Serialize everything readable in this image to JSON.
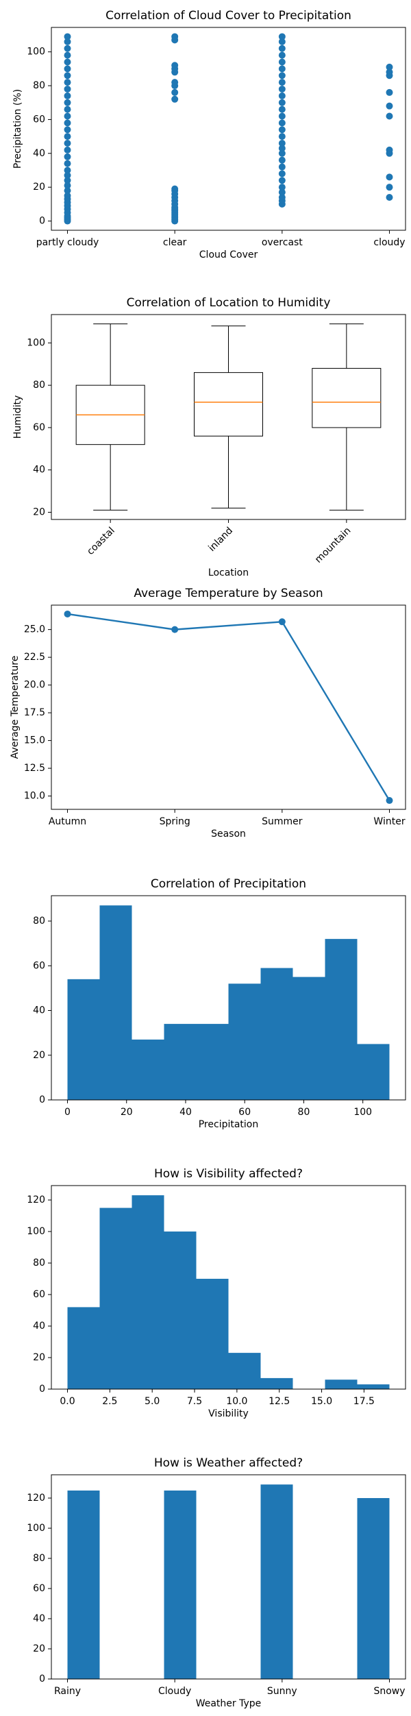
{
  "chart_data": [
    {
      "type": "scatter",
      "title": "Correlation of Cloud Cover to Precipitation",
      "xlabel": "Cloud Cover",
      "ylabel": "Precipitation (%)",
      "color": "#1f77b4",
      "categories": [
        "partly cloudy",
        "clear",
        "overcast",
        "cloudy"
      ],
      "x": [
        "partly cloudy",
        "partly cloudy",
        "partly cloudy",
        "partly cloudy",
        "partly cloudy",
        "partly cloudy",
        "partly cloudy",
        "partly cloudy",
        "partly cloudy",
        "partly cloudy",
        "partly cloudy",
        "partly cloudy",
        "partly cloudy",
        "partly cloudy",
        "partly cloudy",
        "partly cloudy",
        "partly cloudy",
        "partly cloudy",
        "partly cloudy",
        "partly cloudy",
        "partly cloudy",
        "partly cloudy",
        "partly cloudy",
        "partly cloudy",
        "partly cloudy",
        "partly cloudy",
        "partly cloudy",
        "partly cloudy",
        "partly cloudy",
        "partly cloudy",
        "partly cloudy",
        "partly cloudy",
        "partly cloudy",
        "partly cloudy",
        "partly cloudy",
        "clear",
        "clear",
        "clear",
        "clear",
        "clear",
        "clear",
        "clear",
        "clear",
        "clear",
        "clear",
        "clear",
        "clear",
        "clear",
        "clear",
        "clear",
        "clear",
        "clear",
        "clear",
        "clear",
        "clear",
        "clear",
        "clear",
        "clear",
        "clear",
        "overcast",
        "overcast",
        "overcast",
        "overcast",
        "overcast",
        "overcast",
        "overcast",
        "overcast",
        "overcast",
        "overcast",
        "overcast",
        "overcast",
        "overcast",
        "overcast",
        "overcast",
        "overcast",
        "overcast",
        "overcast",
        "overcast",
        "overcast",
        "overcast",
        "overcast",
        "overcast",
        "overcast",
        "overcast",
        "overcast",
        "overcast",
        "overcast",
        "cloudy",
        "cloudy",
        "cloudy",
        "cloudy",
        "cloudy",
        "cloudy",
        "cloudy",
        "cloudy",
        "cloudy",
        "cloudy",
        "cloudy"
      ],
      "values": [
        0,
        1,
        2,
        3,
        5,
        7,
        9,
        11,
        13,
        15,
        18,
        21,
        24,
        27,
        30,
        34,
        38,
        42,
        46,
        50,
        54,
        58,
        62,
        66,
        70,
        74,
        78,
        82,
        86,
        90,
        94,
        98,
        102,
        106,
        109,
        0,
        1,
        2,
        3,
        4,
        5,
        6,
        7,
        8,
        10,
        12,
        14,
        16,
        18,
        19,
        72,
        76,
        80,
        82,
        88,
        90,
        92,
        107,
        109,
        10,
        12,
        14,
        17,
        20,
        24,
        28,
        32,
        36,
        40,
        43,
        46,
        50,
        54,
        58,
        62,
        66,
        70,
        74,
        78,
        82,
        86,
        90,
        94,
        98,
        102,
        106,
        109,
        14,
        20,
        26,
        40,
        42,
        62,
        68,
        76,
        86,
        88,
        91
      ],
      "ylim": [
        -5.45,
        114.45
      ],
      "yticks": [
        0,
        20,
        40,
        60,
        80,
        100
      ]
    },
    {
      "type": "box",
      "title": "Correlation of Location to Humidity",
      "xlabel": "Location",
      "ylabel": "Humidity",
      "color": "#000000",
      "median_color": "#ff7f0e",
      "categories": [
        "coastal",
        "inland",
        "mountain"
      ],
      "boxes": [
        {
          "whislo": 21,
          "q1": 52,
          "med": 66,
          "q3": 80,
          "whishi": 109
        },
        {
          "whislo": 22,
          "q1": 56,
          "med": 72,
          "q3": 86,
          "whishi": 108
        },
        {
          "whislo": 21,
          "q1": 60,
          "med": 72,
          "q3": 88,
          "whishi": 109
        }
      ],
      "ylim": [
        16.6,
        113.4
      ],
      "yticks": [
        20,
        40,
        60,
        80,
        100
      ]
    },
    {
      "type": "line",
      "title": "Average Temperature by Season",
      "xlabel": "Season",
      "ylabel": "Average Temperature",
      "color": "#1f77b4",
      "categories": [
        "Autumn",
        "Spring",
        "Summer",
        "Winter"
      ],
      "values": [
        26.4,
        25.0,
        25.7,
        9.6
      ],
      "ylim": [
        8.8,
        27.2
      ],
      "yticks": [
        {
          "value": 10,
          "label": "10.0"
        },
        {
          "value": 12.5,
          "label": "12.5"
        },
        {
          "value": 15,
          "label": "15.0"
        },
        {
          "value": 17.5,
          "label": "17.5"
        },
        {
          "value": 20,
          "label": "20.0"
        },
        {
          "value": 22.5,
          "label": "22.5"
        },
        {
          "value": 25,
          "label": "25.0"
        }
      ]
    },
    {
      "type": "hist",
      "title": "Correlation of Precipitation",
      "xlabel": "Precipitation",
      "color": "#1f77b4",
      "bins": [
        0,
        10.9,
        21.8,
        32.7,
        43.6,
        54.5,
        65.4,
        76.3,
        87.2,
        98.1,
        109
      ],
      "counts": [
        54,
        87,
        27,
        34,
        34,
        52,
        59,
        55,
        72,
        25
      ],
      "xlim": [
        -5.45,
        114.45
      ],
      "xticks": [
        0,
        20,
        40,
        60,
        80,
        100
      ],
      "ylim": [
        0,
        91.35
      ],
      "yticks": [
        0,
        20,
        40,
        60,
        80
      ]
    },
    {
      "type": "hist",
      "title": "How is Visibility affected?",
      "xlabel": "Visibility",
      "color": "#1f77b4",
      "bins": [
        0,
        1.9,
        3.8,
        5.7,
        7.6,
        9.5,
        11.4,
        13.3,
        15.2,
        17.1,
        19
      ],
      "counts": [
        52,
        115,
        123,
        100,
        70,
        23,
        7,
        0,
        6,
        3
      ],
      "xlim": [
        -0.95,
        19.95
      ],
      "xticks": [
        {
          "value": 0,
          "label": "0.0"
        },
        {
          "value": 2.5,
          "label": "2.5"
        },
        {
          "value": 5,
          "label": "5.0"
        },
        {
          "value": 7.5,
          "label": "7.5"
        },
        {
          "value": 10,
          "label": "10.0"
        },
        {
          "value": 12.5,
          "label": "12.5"
        },
        {
          "value": 15,
          "label": "15.0"
        },
        {
          "value": 17.5,
          "label": "17.5"
        }
      ],
      "ylim": [
        0,
        129.15
      ],
      "yticks": [
        0,
        20,
        40,
        60,
        80,
        100,
        120
      ]
    },
    {
      "type": "hist",
      "title": "How is Weather affected?",
      "xlabel": "Weather Type",
      "color": "#1f77b4",
      "bins": [
        0,
        0.3,
        0.6,
        0.9,
        1.2,
        1.5,
        1.8,
        2.1,
        2.4,
        2.7,
        3
      ],
      "counts": [
        125,
        0,
        0,
        125,
        0,
        0,
        129,
        0,
        0,
        120
      ],
      "xlim": [
        -0.15,
        3.15
      ],
      "xticks": [
        {
          "value": 0,
          "label": "Rainy"
        },
        {
          "value": 1,
          "label": "Cloudy"
        },
        {
          "value": 2,
          "label": "Sunny"
        },
        {
          "value": 3,
          "label": "Snowy"
        }
      ],
      "ylim": [
        0,
        135.45
      ],
      "yticks": [
        0,
        20,
        40,
        60,
        80,
        100,
        120
      ]
    }
  ]
}
